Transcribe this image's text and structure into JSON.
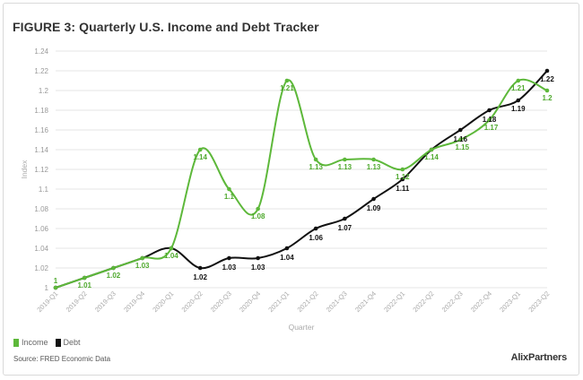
{
  "title": "FIGURE 3: Quarterly U.S. Income and Debt Tracker",
  "source": "Source: FRED Economic Data",
  "brand": {
    "logo_text": "AlixPartners"
  },
  "colors": {
    "income": "#5db83a",
    "debt": "#111111",
    "income_label": "#4fa92e",
    "grid": "#e6e6e6"
  },
  "legend": [
    {
      "label": "Income",
      "color": "#5db83a"
    },
    {
      "label": "Debt",
      "color": "#111111"
    }
  ],
  "chart_data": {
    "type": "line",
    "xlabel": "Quarter",
    "ylabel": "Index",
    "ylim": [
      1,
      1.24
    ],
    "y_ticks": [
      1,
      1.02,
      1.04,
      1.06,
      1.08,
      1.1,
      1.12,
      1.14,
      1.16,
      1.18,
      1.2,
      1.22,
      1.24
    ],
    "y_tick_labels": [
      "1",
      "1.02",
      "1.04",
      "1.06",
      "1.08",
      "1.1",
      "1.12",
      "1.14",
      "1.16",
      "1.18",
      "1.2",
      "1.22",
      "1.24"
    ],
    "grid": "horizontal",
    "legend_position": "bottom-left",
    "categories": [
      "2019-Q1",
      "2019-Q2",
      "2019-Q3",
      "2019-Q4",
      "2020-Q1",
      "2020-Q2",
      "2020-Q3",
      "2020-Q4",
      "2021-Q1",
      "2021-Q2",
      "2021-Q3",
      "2021-Q4",
      "2022-Q1",
      "2022-Q2",
      "2022-Q3",
      "2022-Q4",
      "2023-Q1",
      "2023-Q2"
    ],
    "series": [
      {
        "name": "Income",
        "values": [
          1,
          1.01,
          1.02,
          1.03,
          1.04,
          1.14,
          1.1,
          1.08,
          1.21,
          1.13,
          1.13,
          1.13,
          1.12,
          1.14,
          1.15,
          1.17,
          1.21,
          1.2
        ],
        "labels": [
          "1",
          "1.01",
          "1.02",
          "1.03",
          "1.04",
          "1.14",
          "1.1",
          "1.08",
          "1.21",
          "1.13",
          "1.13",
          "1.13",
          "1.12",
          "1.14",
          "1.15",
          "1.17",
          "1.21",
          "1.2"
        ]
      },
      {
        "name": "Debt",
        "values": [
          1,
          1.01,
          1.02,
          1.03,
          1.04,
          1.02,
          1.03,
          1.03,
          1.04,
          1.06,
          1.07,
          1.09,
          1.11,
          1.14,
          1.16,
          1.18,
          1.19,
          1.22
        ],
        "labels": [
          "",
          "",
          "",
          "",
          "",
          "1.02",
          "1.03",
          "1.03",
          "1.04",
          "1.06",
          "1.07",
          "1.09",
          "1.11",
          "",
          "1.16",
          "1.18",
          "1.19",
          "1.22"
        ]
      }
    ]
  }
}
